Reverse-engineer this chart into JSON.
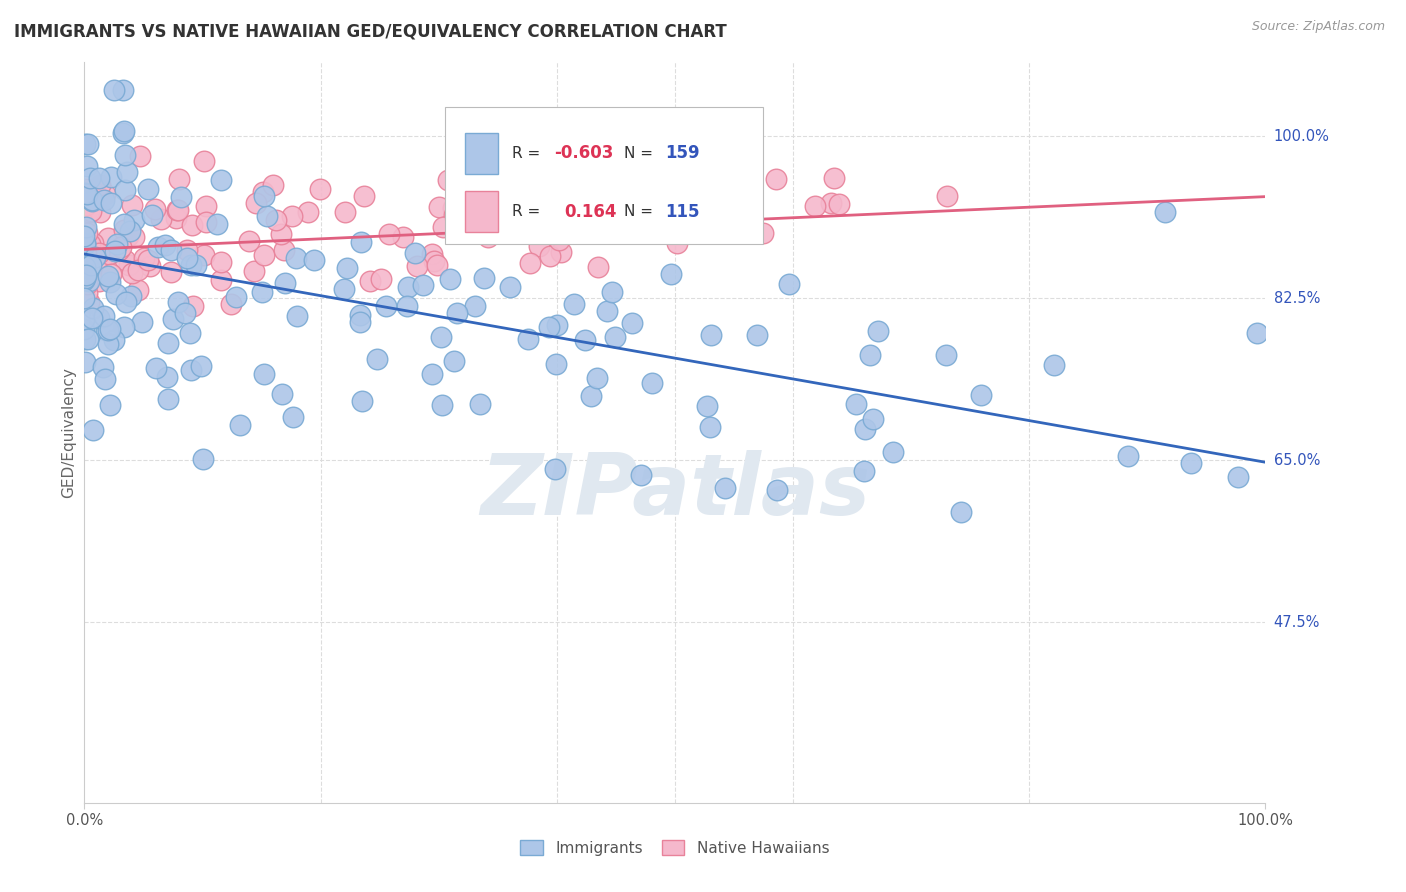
{
  "title": "IMMIGRANTS VS NATIVE HAWAIIAN GED/EQUIVALENCY CORRELATION CHART",
  "source": "Source: ZipAtlas.com",
  "ylabel": "GED/Equivalency",
  "xlim": [
    0.0,
    1.0
  ],
  "ylim": [
    0.28,
    1.08
  ],
  "ytick_vals": [
    1.0,
    0.825,
    0.65,
    0.475
  ],
  "ytick_labels": [
    "100.0%",
    "82.5%",
    "65.0%",
    "47.5%"
  ],
  "xtick_vals": [
    0.0,
    1.0
  ],
  "xtick_labels": [
    "0.0%",
    "100.0%"
  ],
  "legend_r_immigrants": "-0.603",
  "legend_n_immigrants": "159",
  "legend_r_natives": "0.164",
  "legend_n_natives": "115",
  "immigrant_color": "#adc6e8",
  "immigrant_edge": "#7aaad4",
  "native_color": "#f5b8cc",
  "native_edge": "#e8829a",
  "immigrant_line_color": "#3366bb",
  "native_line_color": "#e06080",
  "watermark_text": "ZIPatlas",
  "watermark_color": "#e0e8f0",
  "background_color": "#ffffff",
  "grid_color": "#dddddd",
  "r_value_color": "#dd3355",
  "n_value_color": "#3355bb",
  "imm_line_start_y": 0.873,
  "imm_line_end_y": 0.648,
  "nat_line_start_y": 0.878,
  "nat_line_end_y": 0.935
}
